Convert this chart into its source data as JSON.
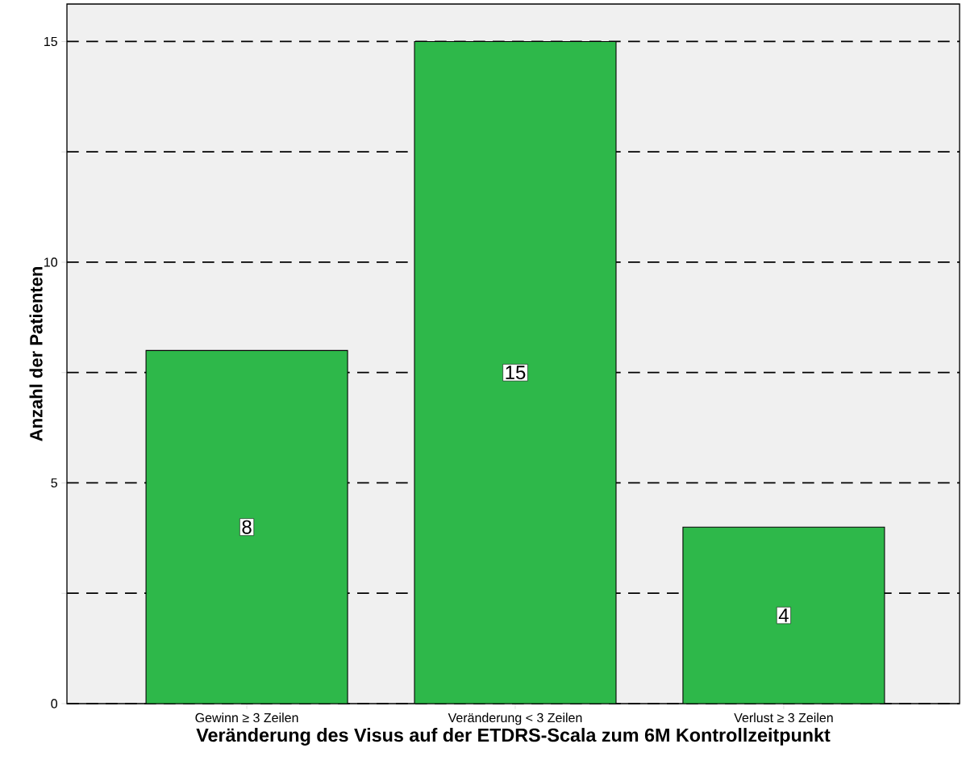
{
  "chart_data": {
    "type": "bar",
    "xlabel": "Veränderung des Visus auf der ETDRS-Scala zum 6M Kontrollzeitpunkt",
    "ylabel": "Anzahl der Patienten",
    "categories": [
      "Gewinn ≥ 3 Zeilen",
      "Veränderung < 3 Zeilen",
      "Verlust ≥ 3 Zeilen"
    ],
    "values": [
      8,
      15,
      4
    ],
    "color": "#2eb84a",
    "ylim": [
      0,
      15.85
    ],
    "yticks": [
      0,
      {
        "value": 2.5,
        "label": null
      },
      5,
      {
        "value": 7.5,
        "label": null
      },
      10,
      {
        "value": 12.5,
        "label": null
      },
      15
    ],
    "grid": "y",
    "data_labels": true
  }
}
